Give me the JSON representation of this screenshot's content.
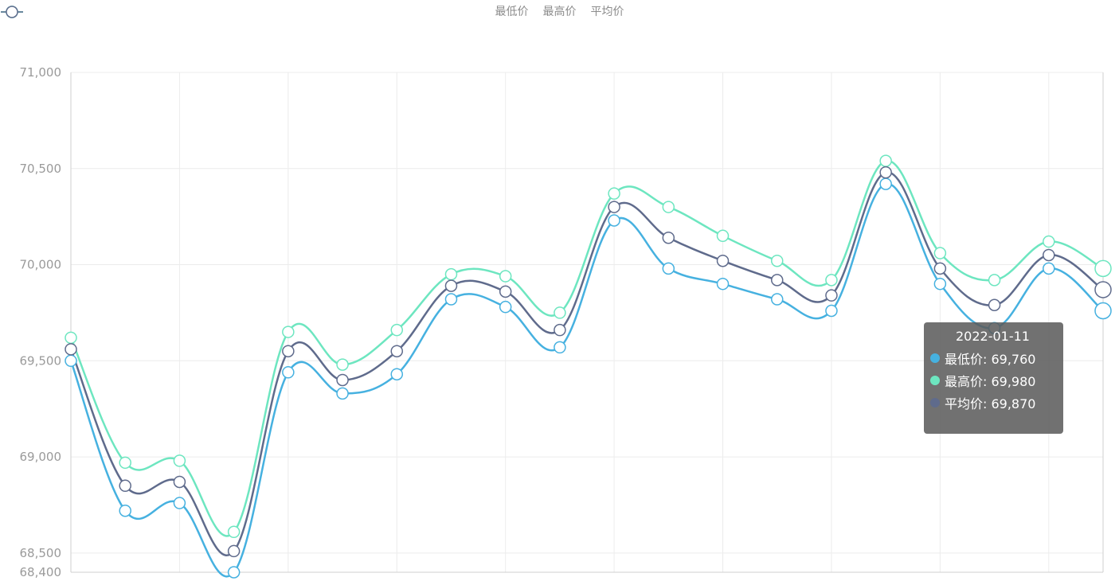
{
  "legend": [
    {
      "name": "最低价",
      "color": "#46b1e0"
    },
    {
      "name": "最高价",
      "color": "#6de6c0"
    },
    {
      "name": "平均价",
      "color": "#5f6b8c"
    }
  ],
  "tooltip": {
    "title": "2022-01-11",
    "rows": [
      {
        "text": "最低价: 69,760",
        "color": "#46b1e0"
      },
      {
        "text": "最高价: 69,980",
        "color": "#6de6c0"
      },
      {
        "text": "平均价: 69,870",
        "color": "#5f6b8c"
      }
    ]
  },
  "chart_data": {
    "type": "line",
    "title": "",
    "xlabel": "",
    "ylabel": "",
    "ylim": [
      68400,
      71000
    ],
    "yticks": [
      68400,
      68500,
      69000,
      69500,
      70000,
      70500,
      71000
    ],
    "ytick_labels": [
      "68,400",
      "68,500",
      "69,000",
      "69,500",
      "70,000",
      "70,500",
      "71,000"
    ],
    "n_points": 20,
    "series": [
      {
        "name": "最低价",
        "color": "#46b1e0",
        "values": [
          69500,
          68720,
          68760,
          68400,
          69440,
          69330,
          69430,
          69820,
          69780,
          69570,
          70230,
          69980,
          69900,
          69820,
          69760,
          70420,
          69900,
          69670,
          69980,
          69760
        ]
      },
      {
        "name": "最高价",
        "color": "#6de6c0",
        "values": [
          69620,
          68970,
          68980,
          68610,
          69650,
          69480,
          69660,
          69950,
          69940,
          69750,
          70370,
          70300,
          70150,
          70020,
          69920,
          70540,
          70060,
          69920,
          70120,
          69980
        ]
      },
      {
        "name": "平均价",
        "color": "#5f6b8c",
        "values": [
          69560,
          68850,
          68870,
          68510,
          69550,
          69400,
          69550,
          69890,
          69860,
          69660,
          70300,
          70140,
          70020,
          69920,
          69840,
          70480,
          69980,
          69790,
          70050,
          69870
        ]
      }
    ]
  }
}
